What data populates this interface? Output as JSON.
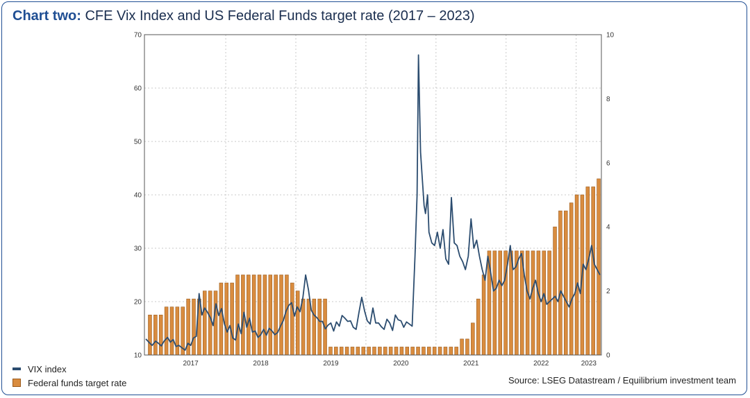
{
  "title": {
    "lead": "Chart two:",
    "text": "CFE Vix Index and US Federal Funds target rate (2017 – 2023)"
  },
  "source": "Source: LSEG Datastream  / Equilibrium investment team",
  "colors": {
    "vix_line": "#2b4c6f",
    "bar_fill": "#d98c3f",
    "bar_stroke": "#9a5a1c",
    "grid": "#c8c8c8",
    "frame": "#1f4e93"
  },
  "chart_data": {
    "type": "line+bar",
    "grid": true,
    "legend_position": "bottom-left",
    "x_ticks": [
      "2017",
      "2018",
      "2019",
      "2020",
      "2021",
      "2022",
      "2023"
    ],
    "x_range": [
      2016.84,
      2023.36
    ],
    "y_left": {
      "range": [
        10,
        70
      ],
      "ticks": [
        10,
        20,
        30,
        40,
        50,
        60,
        70
      ]
    },
    "y_right": {
      "range": [
        0,
        10
      ],
      "ticks": [
        0,
        2,
        4,
        6,
        8,
        10
      ]
    },
    "series": [
      {
        "name": "VIX index",
        "type": "line",
        "axis": "left",
        "points": [
          [
            2016.86,
            13.0
          ],
          [
            2016.91,
            12.3
          ],
          [
            2016.95,
            11.8
          ],
          [
            2017.0,
            12.6
          ],
          [
            2017.04,
            12.2
          ],
          [
            2017.08,
            11.7
          ],
          [
            2017.12,
            12.6
          ],
          [
            2017.17,
            13.3
          ],
          [
            2017.21,
            12.4
          ],
          [
            2017.25,
            12.9
          ],
          [
            2017.29,
            11.6
          ],
          [
            2017.33,
            11.8
          ],
          [
            2017.37,
            11.4
          ],
          [
            2017.42,
            10.9
          ],
          [
            2017.46,
            12.2
          ],
          [
            2017.5,
            11.8
          ],
          [
            2017.54,
            13.2
          ],
          [
            2017.58,
            13.5
          ],
          [
            2017.62,
            21.5
          ],
          [
            2017.66,
            17.5
          ],
          [
            2017.7,
            18.8
          ],
          [
            2017.74,
            18.0
          ],
          [
            2017.78,
            17.0
          ],
          [
            2017.82,
            15.5
          ],
          [
            2017.86,
            19.6
          ],
          [
            2017.9,
            17.4
          ],
          [
            2017.94,
            18.7
          ],
          [
            2017.98,
            15.9
          ],
          [
            2018.02,
            14.3
          ],
          [
            2018.06,
            15.5
          ],
          [
            2018.1,
            13.2
          ],
          [
            2018.14,
            12.8
          ],
          [
            2018.18,
            15.8
          ],
          [
            2018.22,
            14.0
          ],
          [
            2018.26,
            18.0
          ],
          [
            2018.3,
            15.2
          ],
          [
            2018.34,
            16.9
          ],
          [
            2018.38,
            14.3
          ],
          [
            2018.42,
            14.5
          ],
          [
            2018.46,
            13.3
          ],
          [
            2018.5,
            13.8
          ],
          [
            2018.54,
            14.8
          ],
          [
            2018.58,
            13.7
          ],
          [
            2018.62,
            15.0
          ],
          [
            2018.66,
            14.5
          ],
          [
            2018.7,
            13.8
          ],
          [
            2018.74,
            14.2
          ],
          [
            2018.78,
            15.4
          ],
          [
            2018.82,
            16.4
          ],
          [
            2018.86,
            18.2
          ],
          [
            2018.9,
            19.3
          ],
          [
            2018.94,
            19.8
          ],
          [
            2018.98,
            17.3
          ],
          [
            2019.02,
            19.0
          ],
          [
            2019.06,
            18.1
          ],
          [
            2019.1,
            20.7
          ],
          [
            2019.14,
            25.0
          ],
          [
            2019.18,
            22.2
          ],
          [
            2019.22,
            18.4
          ],
          [
            2019.26,
            17.5
          ],
          [
            2019.3,
            17.0
          ],
          [
            2019.34,
            16.3
          ],
          [
            2019.38,
            16.3
          ],
          [
            2019.42,
            14.9
          ],
          [
            2019.46,
            15.6
          ],
          [
            2019.5,
            16.0
          ],
          [
            2019.54,
            14.5
          ],
          [
            2019.58,
            16.2
          ],
          [
            2019.62,
            15.4
          ],
          [
            2019.66,
            17.4
          ],
          [
            2019.7,
            16.9
          ],
          [
            2019.74,
            16.3
          ],
          [
            2019.78,
            16.4
          ],
          [
            2019.82,
            15.2
          ],
          [
            2019.86,
            14.8
          ],
          [
            2019.9,
            17.9
          ],
          [
            2019.94,
            20.8
          ],
          [
            2019.98,
            18.3
          ],
          [
            2020.02,
            16.4
          ],
          [
            2020.06,
            15.8
          ],
          [
            2020.1,
            18.8
          ],
          [
            2020.14,
            16.0
          ],
          [
            2020.18,
            16.0
          ],
          [
            2020.22,
            15.3
          ],
          [
            2020.26,
            14.8
          ],
          [
            2020.3,
            16.7
          ],
          [
            2020.34,
            16.0
          ],
          [
            2020.38,
            14.6
          ],
          [
            2020.42,
            17.5
          ],
          [
            2020.46,
            16.6
          ],
          [
            2020.5,
            16.4
          ],
          [
            2020.54,
            15.2
          ],
          [
            2020.58,
            16.2
          ],
          [
            2020.62,
            15.8
          ],
          [
            2020.66,
            15.4
          ],
          [
            2020.7,
            28.5
          ],
          [
            2020.73,
            40.0
          ],
          [
            2020.75,
            66.2
          ],
          [
            2020.78,
            48.0
          ],
          [
            2020.8,
            44.0
          ],
          [
            2020.83,
            38.0
          ],
          [
            2020.85,
            36.5
          ],
          [
            2020.88,
            40.0
          ],
          [
            2020.9,
            33.0
          ],
          [
            2020.94,
            31.0
          ],
          [
            2020.98,
            30.5
          ],
          [
            2021.02,
            33.0
          ],
          [
            2021.06,
            30.0
          ],
          [
            2021.1,
            33.5
          ],
          [
            2021.14,
            28.0
          ],
          [
            2021.18,
            27.0
          ],
          [
            2021.22,
            39.5
          ],
          [
            2021.26,
            31.0
          ],
          [
            2021.3,
            30.5
          ],
          [
            2021.34,
            28.5
          ],
          [
            2021.38,
            27.5
          ],
          [
            2021.42,
            26.0
          ],
          [
            2021.46,
            28.5
          ],
          [
            2021.5,
            35.5
          ],
          [
            2021.54,
            30.0
          ],
          [
            2021.58,
            31.5
          ],
          [
            2021.62,
            28.5
          ],
          [
            2021.66,
            26.0
          ],
          [
            2021.7,
            24.0
          ],
          [
            2021.74,
            28.5
          ],
          [
            2021.78,
            25.5
          ],
          [
            2021.82,
            22.0
          ],
          [
            2021.86,
            22.5
          ],
          [
            2021.9,
            24.0
          ],
          [
            2021.94,
            23.0
          ],
          [
            2021.98,
            24.0
          ],
          [
            2022.02,
            27.0
          ],
          [
            2022.06,
            30.5
          ],
          [
            2022.1,
            26.0
          ],
          [
            2022.14,
            26.5
          ],
          [
            2022.18,
            28.0
          ],
          [
            2022.22,
            29.0
          ],
          [
            2022.26,
            25.0
          ],
          [
            2022.3,
            22.0
          ],
          [
            2022.34,
            20.5
          ],
          [
            2022.38,
            22.5
          ],
          [
            2022.42,
            24.0
          ],
          [
            2022.46,
            21.5
          ],
          [
            2022.5,
            20.0
          ],
          [
            2022.54,
            21.5
          ],
          [
            2022.58,
            19.5
          ],
          [
            2022.62,
            20.0
          ],
          [
            2022.66,
            20.5
          ],
          [
            2022.7,
            21.0
          ],
          [
            2022.74,
            20.0
          ],
          [
            2022.78,
            22.0
          ],
          [
            2022.82,
            21.0
          ],
          [
            2022.86,
            20.0
          ],
          [
            2022.9,
            19.0
          ],
          [
            2022.94,
            20.5
          ],
          [
            2022.98,
            21.5
          ],
          [
            2023.02,
            23.5
          ],
          [
            2023.06,
            21.5
          ],
          [
            2023.1,
            27.0
          ],
          [
            2023.14,
            26.0
          ],
          [
            2023.18,
            28.0
          ],
          [
            2023.22,
            30.5
          ],
          [
            2023.26,
            27.0
          ],
          [
            2023.3,
            26.0
          ],
          [
            2023.34,
            25.0
          ]
        ]
      },
      {
        "name": "Federal funds target rate",
        "type": "bar",
        "axis": "right",
        "values": [
          1.25,
          1.25,
          1.25,
          1.5,
          1.5,
          1.5,
          1.5,
          1.75,
          1.75,
          1.75,
          2.0,
          2.0,
          2.0,
          2.25,
          2.25,
          2.25,
          2.5,
          2.5,
          2.5,
          2.5,
          2.5,
          2.5,
          2.5,
          2.5,
          2.5,
          2.5,
          2.25,
          2.0,
          1.75,
          1.75,
          1.75,
          1.75,
          1.75,
          0.25,
          0.25,
          0.25,
          0.25,
          0.25,
          0.25,
          0.25,
          0.25,
          0.25,
          0.25,
          0.25,
          0.25,
          0.25,
          0.25,
          0.25,
          0.25,
          0.25,
          0.25,
          0.25,
          0.25,
          0.25,
          0.25,
          0.25,
          0.25,
          0.5,
          0.5,
          1.0,
          1.75,
          2.5,
          3.25,
          3.25,
          3.25,
          3.25,
          3.25,
          3.25,
          3.25,
          3.25,
          3.25,
          3.25,
          3.25,
          3.25,
          4.0,
          4.5,
          4.5,
          4.75,
          5.0,
          5.0,
          5.25,
          5.25,
          5.5
        ]
      }
    ]
  }
}
